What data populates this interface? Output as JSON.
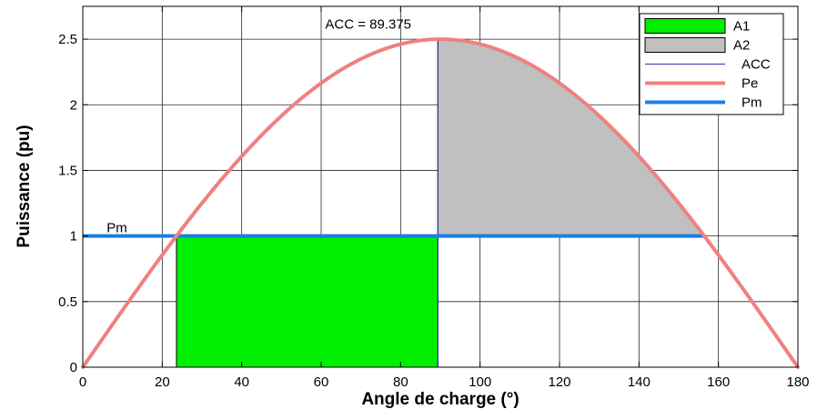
{
  "chart_data": {
    "type": "line",
    "title": "",
    "xlabel": "Angle de charge (°)",
    "ylabel": "Puissance (pu)",
    "xlim": [
      0,
      180
    ],
    "ylim": [
      0,
      2.75
    ],
    "xticks": [
      0,
      20,
      40,
      60,
      80,
      100,
      120,
      140,
      160,
      180
    ],
    "yticks": [
      0,
      0.5,
      1,
      1.5,
      2,
      2.5
    ],
    "xtick_labels": [
      "0",
      "20",
      "40",
      "60",
      "80",
      "100",
      "120",
      "140",
      "160",
      "180"
    ],
    "ytick_labels": [
      "0",
      "0.5",
      "1",
      "1.5",
      "2",
      "2.5"
    ],
    "grid": true,
    "legend_position": "top-right",
    "pmax": 2.5,
    "pm": 1,
    "delta0": 23.58,
    "delta_max": 156.42,
    "acc": 89.375,
    "series": [
      {
        "name": "A1",
        "kind": "area",
        "color": "#00ee00",
        "x_range": [
          23.58,
          89.375
        ],
        "y_range": [
          0,
          1
        ]
      },
      {
        "name": "A2",
        "kind": "area",
        "color": "#c0c0c0",
        "x_range": [
          89.375,
          156.42
        ],
        "lower": 1,
        "upper": "Pe"
      },
      {
        "name": "ACC",
        "kind": "line",
        "color": "#3333aa",
        "x": [
          89.375,
          89.375
        ],
        "y": [
          0,
          2.5
        ]
      },
      {
        "name": "Pe",
        "kind": "line",
        "color": "#f08080",
        "formula": "2.5*sin(x)",
        "x_range": [
          0,
          180
        ]
      },
      {
        "name": "Pm",
        "kind": "line",
        "color": "#1a7fe6",
        "x": [
          0,
          156.42
        ],
        "y": [
          1,
          1
        ]
      }
    ],
    "annotations": [
      {
        "text": "ACC = 89.375",
        "x": 61,
        "y": 2.58
      },
      {
        "text": "Pm",
        "x": 6,
        "y": 1.03
      }
    ]
  }
}
